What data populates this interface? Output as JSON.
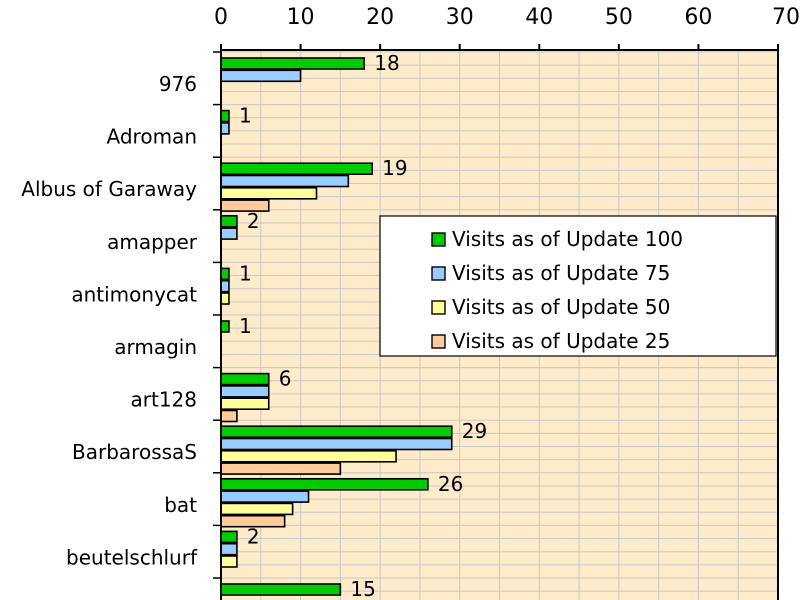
{
  "chart_data": {
    "type": "bar",
    "orientation": "horizontal",
    "xlim": [
      0,
      70
    ],
    "x_ticks": [
      "0",
      "10",
      "20",
      "30",
      "40",
      "50",
      "60",
      "70"
    ],
    "categories": [
      "976",
      "Adroman",
      "Albus of Garaway",
      "amapper",
      "antimonycat",
      "armagin",
      "art128",
      "BarbarossaS",
      "bat",
      "beutelschlurf",
      ""
    ],
    "series": [
      {
        "name": "Visits as of Update 100",
        "color": "#00cc00",
        "values": [
          18,
          1,
          19,
          2,
          1,
          1,
          6,
          29,
          26,
          2,
          15
        ]
      },
      {
        "name": "Visits as of Update 75",
        "color": "#99ccff",
        "values": [
          10,
          1,
          16,
          2,
          1,
          null,
          6,
          29,
          11,
          2,
          null
        ]
      },
      {
        "name": "Visits as of Update 50",
        "color": "#ffff99",
        "values": [
          null,
          null,
          12,
          null,
          1,
          null,
          6,
          22,
          9,
          2,
          null
        ]
      },
      {
        "name": "Visits as of Update 25",
        "color": "#ffcc99",
        "values": [
          null,
          null,
          6,
          null,
          null,
          null,
          2,
          15,
          8,
          null,
          null
        ]
      }
    ],
    "value_labels": [
      "18",
      "1",
      "19",
      "2",
      "1",
      "1",
      "6",
      "29",
      "26",
      "2",
      "15"
    ],
    "grid": true,
    "legend_position": "center-right",
    "plot_background": "#fdebc9"
  }
}
